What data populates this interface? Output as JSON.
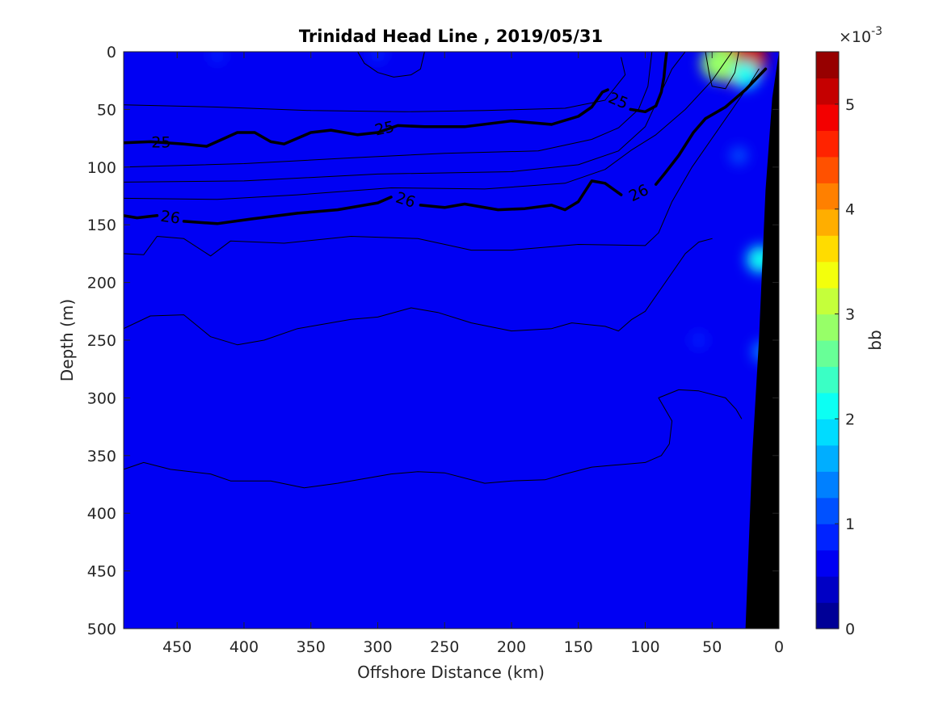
{
  "chart_data": {
    "type": "heatmap",
    "title": "Trinidad Head Line , 2019/05/31",
    "xlabel": "Offshore Distance (km)",
    "ylabel": "Depth (m)",
    "xlim": [
      490,
      0
    ],
    "ylim": [
      0,
      500
    ],
    "x_direction": "reversed",
    "y_direction": "reversed (depth increases downward)",
    "x_ticks": [
      450,
      400,
      350,
      300,
      250,
      200,
      150,
      100,
      50,
      0
    ],
    "y_ticks": [
      0,
      50,
      100,
      150,
      200,
      250,
      300,
      350,
      400,
      450,
      500
    ],
    "colorbar": {
      "label": "bb",
      "exponent_label": "×10",
      "exponent_power": "-3",
      "range": [
        0,
        5.5
      ],
      "ticks": [
        0,
        1,
        2,
        3,
        4,
        5
      ],
      "levels": 22,
      "colormap": "jet"
    },
    "background_value": 0.55,
    "field_features": [
      {
        "x": 30,
        "depth": 5,
        "value": 5.0
      },
      {
        "x": 45,
        "depth": 10,
        "value": 2.8
      },
      {
        "x": 25,
        "depth": 20,
        "value": 2.0
      },
      {
        "x": 14,
        "depth": 180,
        "value": 2.0
      },
      {
        "x": 12,
        "depth": 260,
        "value": 1.4
      },
      {
        "x": 60,
        "depth": 250,
        "value": 0.85
      },
      {
        "x": 300,
        "depth": 2,
        "value": 0.95
      },
      {
        "x": 420,
        "depth": 3,
        "value": 0.85
      },
      {
        "x": 30,
        "depth": 90,
        "value": 1.0
      }
    ],
    "contour_lines": [
      {
        "label": "25",
        "bold": true,
        "points": [
          [
            490,
            79
          ],
          [
            470,
            78
          ],
          [
            445,
            80
          ],
          [
            428,
            82
          ],
          [
            405,
            70
          ],
          [
            392,
            70
          ],
          [
            380,
            78
          ],
          [
            370,
            80
          ],
          [
            350,
            70
          ],
          [
            335,
            68
          ],
          [
            315,
            72
          ],
          [
            300,
            70
          ],
          [
            285,
            64
          ],
          [
            265,
            65
          ],
          [
            235,
            65
          ],
          [
            200,
            60
          ],
          [
            170,
            63
          ],
          [
            150,
            56
          ],
          [
            140,
            48
          ],
          [
            132,
            35
          ],
          [
            128,
            33
          ]
        ]
      },
      {
        "label": "25",
        "bold": true,
        "points": [
          [
            111,
            50
          ],
          [
            100,
            52
          ],
          [
            92,
            47
          ],
          [
            88,
            35
          ],
          [
            86,
            22
          ],
          [
            85,
            10
          ],
          [
            84,
            0
          ]
        ]
      },
      {
        "label": "26",
        "bold": true,
        "points": [
          [
            490,
            142
          ],
          [
            480,
            144
          ],
          [
            465,
            142
          ]
        ]
      },
      {
        "label": "26",
        "bold": true,
        "points": [
          [
            445,
            147
          ],
          [
            420,
            149
          ],
          [
            395,
            145
          ],
          [
            360,
            140
          ],
          [
            330,
            137
          ],
          [
            300,
            131
          ],
          [
            290,
            126
          ]
        ]
      },
      {
        "label": "26",
        "bold": true,
        "points": [
          [
            268,
            133
          ],
          [
            250,
            135
          ],
          [
            235,
            132
          ],
          [
            210,
            137
          ],
          [
            190,
            136
          ],
          [
            170,
            133
          ],
          [
            160,
            137
          ],
          [
            150,
            130
          ],
          [
            140,
            112
          ],
          [
            130,
            114
          ],
          [
            118,
            124
          ]
        ]
      },
      {
        "label": "26",
        "bold": true,
        "points": [
          [
            92,
            115
          ],
          [
            85,
            105
          ],
          [
            75,
            90
          ],
          [
            64,
            70
          ],
          [
            55,
            58
          ],
          [
            40,
            48
          ],
          [
            25,
            33
          ],
          [
            10,
            15
          ]
        ]
      },
      {
        "label": "",
        "bold": false,
        "points": [
          [
            490,
            46
          ],
          [
            420,
            48
          ],
          [
            350,
            51
          ],
          [
            280,
            52
          ],
          [
            220,
            51
          ],
          [
            160,
            49
          ],
          [
            130,
            42
          ],
          [
            115,
            20
          ],
          [
            118,
            5
          ]
        ]
      },
      {
        "label": "",
        "bold": false,
        "points": [
          [
            490,
            100
          ],
          [
            400,
            97
          ],
          [
            320,
            92
          ],
          [
            250,
            88
          ],
          [
            180,
            86
          ],
          [
            140,
            76
          ],
          [
            120,
            66
          ],
          [
            105,
            50
          ],
          [
            98,
            30
          ],
          [
            95,
            0
          ]
        ]
      },
      {
        "label": "",
        "bold": false,
        "points": [
          [
            490,
            113
          ],
          [
            400,
            112
          ],
          [
            300,
            106
          ],
          [
            200,
            104
          ],
          [
            150,
            98
          ],
          [
            120,
            86
          ],
          [
            100,
            65
          ],
          [
            90,
            40
          ],
          [
            80,
            15
          ],
          [
            70,
            0
          ]
        ]
      },
      {
        "label": "",
        "bold": false,
        "points": [
          [
            490,
            127
          ],
          [
            420,
            128
          ],
          [
            360,
            124
          ],
          [
            290,
            118
          ],
          [
            220,
            119
          ],
          [
            160,
            114
          ],
          [
            130,
            102
          ],
          [
            110,
            85
          ],
          [
            92,
            72
          ],
          [
            70,
            50
          ],
          [
            50,
            25
          ],
          [
            35,
            0
          ]
        ]
      },
      {
        "label": "",
        "bold": false,
        "points": [
          [
            490,
            175
          ],
          [
            475,
            176
          ],
          [
            465,
            160
          ],
          [
            445,
            162
          ],
          [
            425,
            177
          ],
          [
            410,
            164
          ],
          [
            370,
            166
          ],
          [
            320,
            160
          ],
          [
            270,
            162
          ],
          [
            230,
            172
          ],
          [
            200,
            172
          ],
          [
            150,
            167
          ],
          [
            100,
            168
          ],
          [
            90,
            157
          ],
          [
            80,
            130
          ],
          [
            65,
            100
          ],
          [
            50,
            75
          ],
          [
            35,
            50
          ],
          [
            22,
            28
          ],
          [
            15,
            15
          ]
        ]
      },
      {
        "label": "",
        "bold": false,
        "points": [
          [
            490,
            240
          ],
          [
            470,
            229
          ],
          [
            445,
            228
          ],
          [
            425,
            247
          ],
          [
            405,
            254
          ],
          [
            385,
            250
          ],
          [
            360,
            240
          ],
          [
            320,
            232
          ],
          [
            300,
            230
          ],
          [
            275,
            222
          ],
          [
            255,
            226
          ],
          [
            230,
            235
          ],
          [
            200,
            242
          ],
          [
            170,
            240
          ],
          [
            155,
            235
          ],
          [
            130,
            238
          ],
          [
            120,
            242
          ],
          [
            110,
            232
          ],
          [
            100,
            225
          ],
          [
            85,
            200
          ],
          [
            70,
            175
          ],
          [
            60,
            165
          ],
          [
            50,
            162
          ]
        ]
      },
      {
        "label": "",
        "bold": false,
        "points": [
          [
            490,
            362
          ],
          [
            475,
            356
          ],
          [
            455,
            362
          ],
          [
            425,
            366
          ],
          [
            410,
            372
          ],
          [
            380,
            372
          ],
          [
            355,
            378
          ],
          [
            330,
            374
          ],
          [
            310,
            370
          ],
          [
            290,
            366
          ],
          [
            270,
            364
          ],
          [
            250,
            365
          ],
          [
            220,
            374
          ],
          [
            200,
            372
          ],
          [
            175,
            371
          ],
          [
            160,
            366
          ],
          [
            140,
            360
          ],
          [
            120,
            358
          ],
          [
            100,
            356
          ],
          [
            88,
            350
          ],
          [
            82,
            340
          ],
          [
            80,
            320
          ],
          [
            90,
            300
          ],
          [
            75,
            293
          ],
          [
            60,
            294
          ],
          [
            40,
            300
          ],
          [
            32,
            310
          ],
          [
            28,
            318
          ]
        ]
      },
      {
        "label": "",
        "bold": false,
        "points": [
          [
            265,
            0
          ],
          [
            268,
            15
          ],
          [
            275,
            20
          ],
          [
            288,
            22
          ],
          [
            300,
            18
          ],
          [
            310,
            10
          ],
          [
            315,
            0
          ]
        ]
      },
      {
        "label": "",
        "bold": false,
        "points": [
          [
            55,
            0
          ],
          [
            52,
            20
          ],
          [
            50,
            30
          ],
          [
            40,
            32
          ],
          [
            33,
            18
          ],
          [
            30,
            0
          ]
        ]
      }
    ],
    "contour_label_positions": [
      {
        "text": "25",
        "x": 462,
        "depth": 78,
        "angle": 0
      },
      {
        "text": "25",
        "x": 295,
        "depth": 66,
        "angle": -12
      },
      {
        "text": "25",
        "x": 120,
        "depth": 42,
        "angle": 22
      },
      {
        "text": "26",
        "x": 455,
        "depth": 143,
        "angle": 8
      },
      {
        "text": "26",
        "x": 279,
        "depth": 128,
        "angle": 18
      },
      {
        "text": "26",
        "x": 105,
        "depth": 122,
        "angle": -26
      }
    ],
    "bathymetry": {
      "fill": "#000000",
      "points": [
        [
          25,
          500
        ],
        [
          20,
          350
        ],
        [
          15,
          250
        ],
        [
          10,
          120
        ],
        [
          5,
          40
        ],
        [
          0,
          0
        ],
        [
          0,
          500
        ]
      ]
    }
  }
}
